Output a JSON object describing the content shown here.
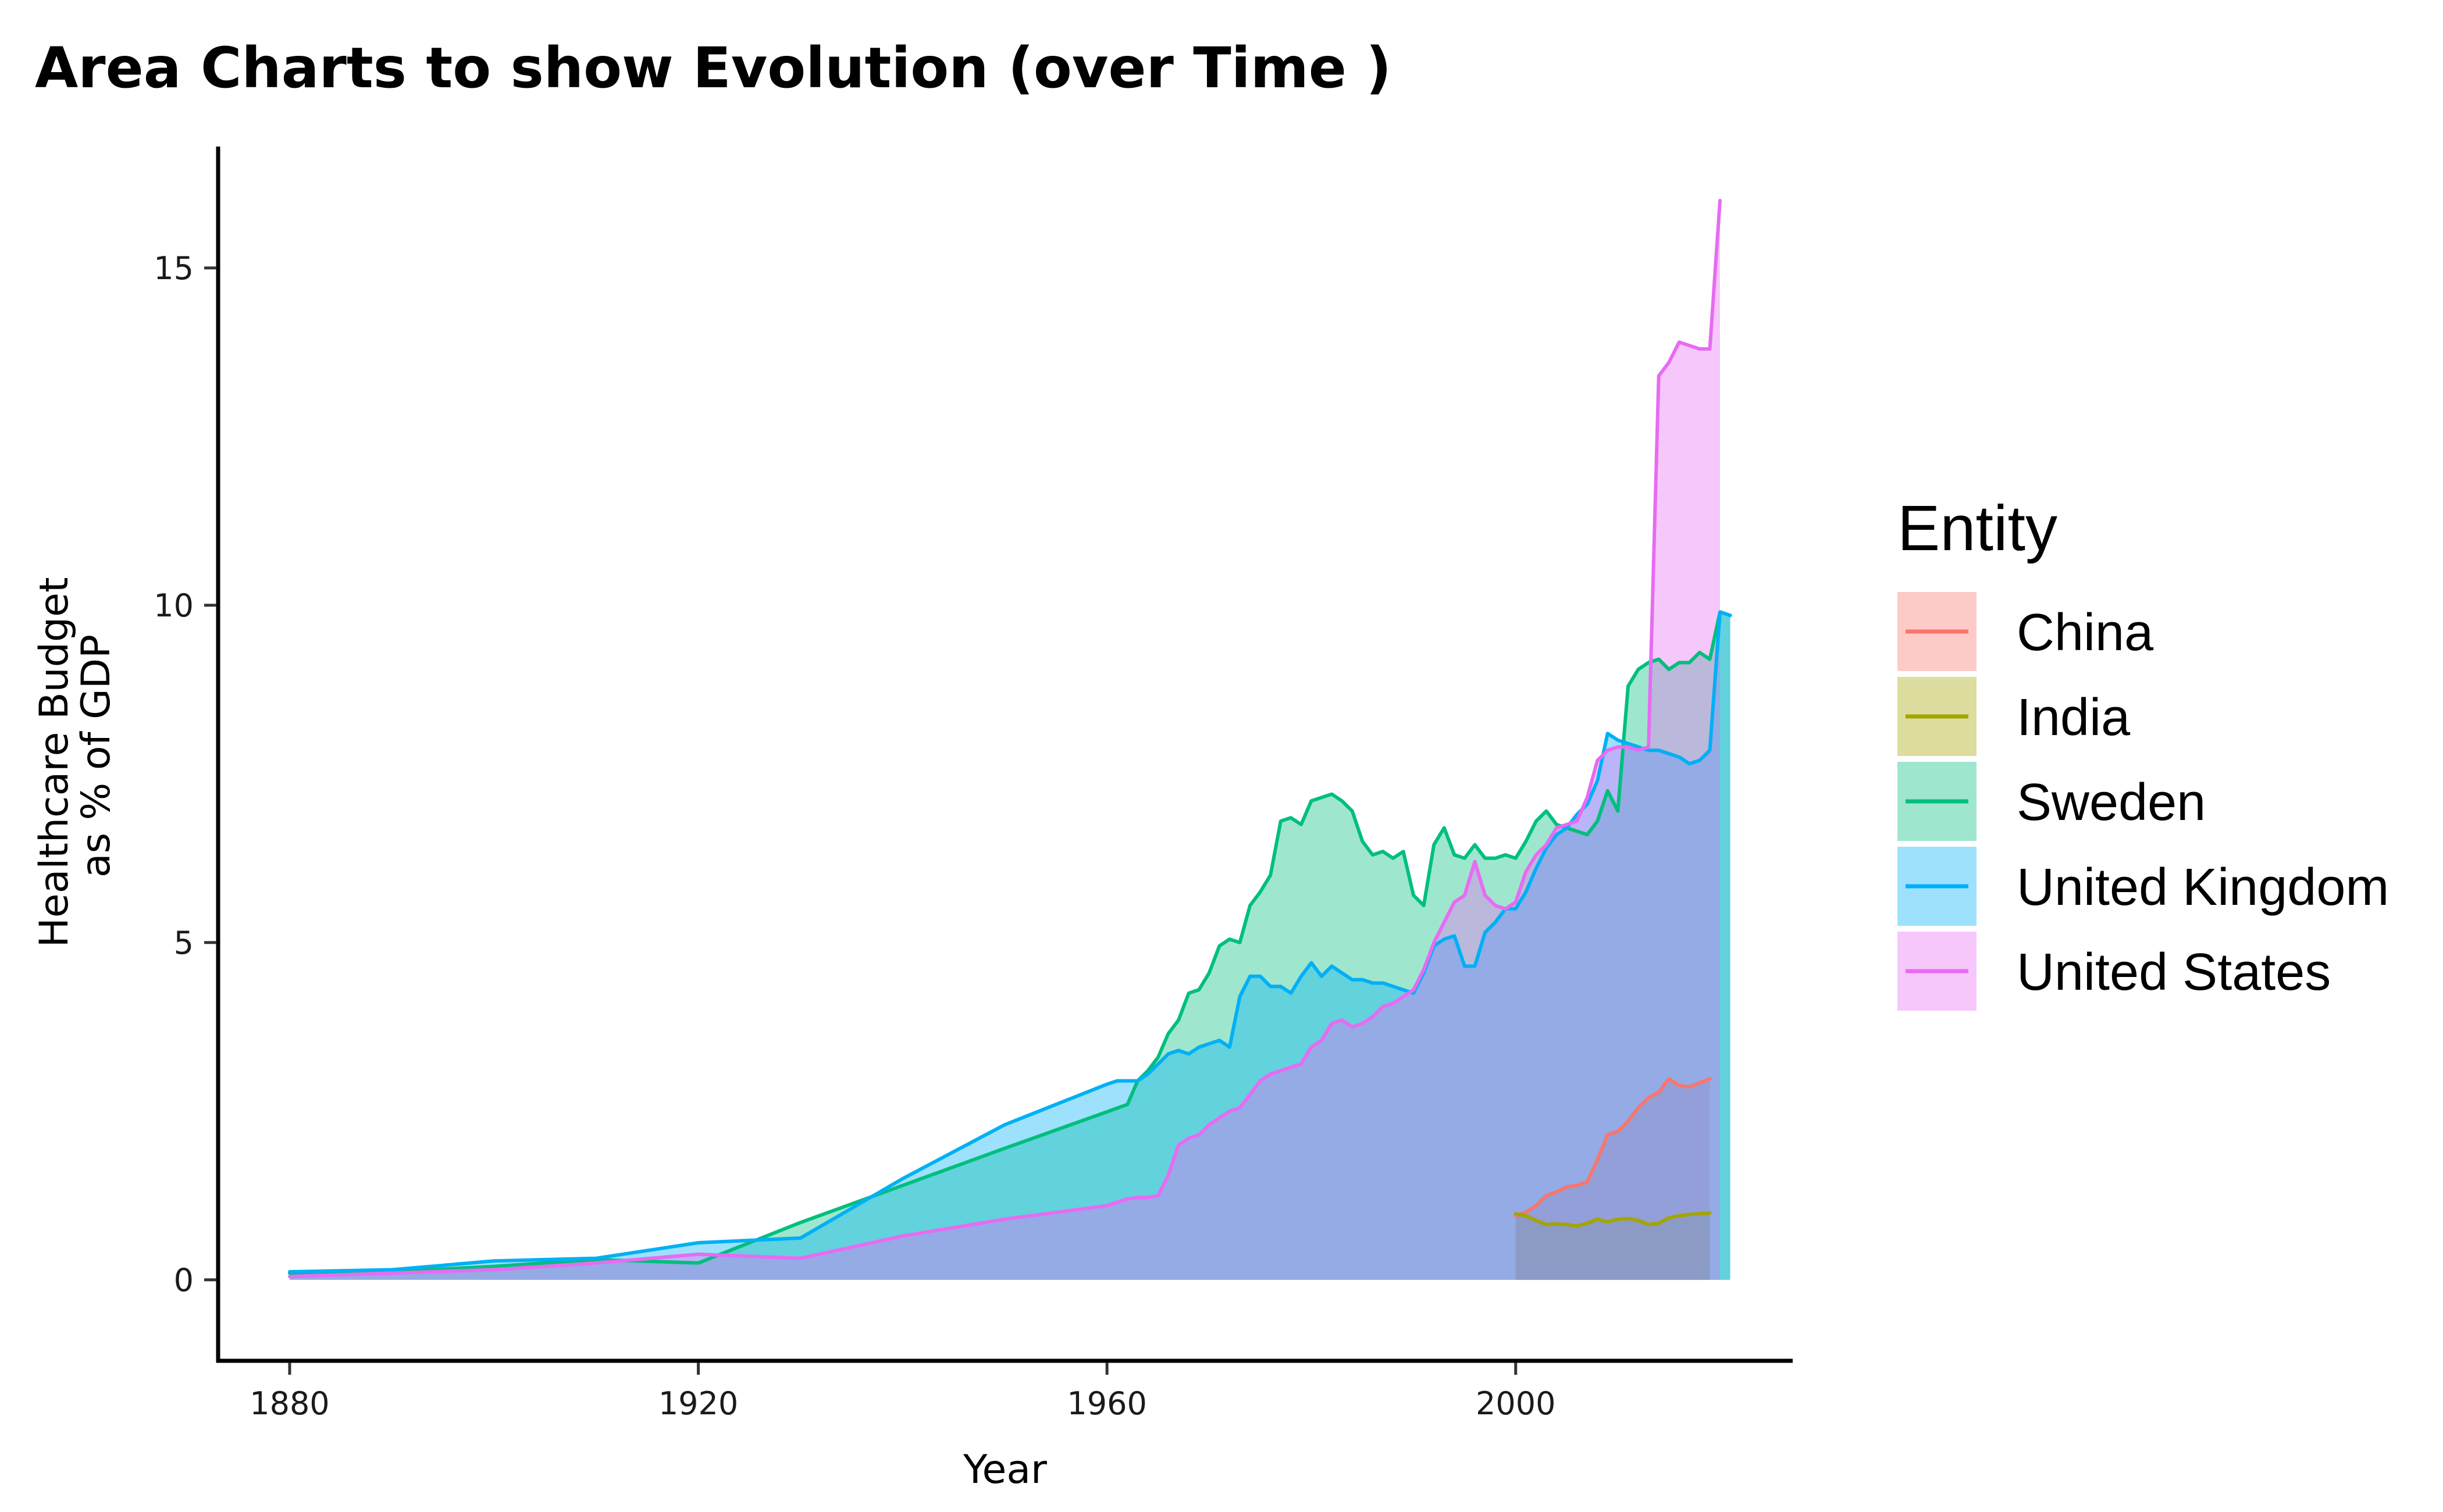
{
  "chart_data": {
    "type": "area",
    "title": "Area Charts to show Evolution (over Time )",
    "xlabel": "Year",
    "ylabel": [
      "Healthcare Budget",
      "as % of GDP"
    ],
    "xlim": [
      1873,
      2027
    ],
    "ylim": [
      -1.2,
      16.8
    ],
    "xticks": [
      1880,
      1920,
      1960,
      2000
    ],
    "xtick_labels": [
      "1880",
      "1920",
      "1960",
      "2000"
    ],
    "yticks": [
      0,
      5,
      10,
      15
    ],
    "ytick_labels": [
      "0",
      "5",
      "10",
      "15"
    ],
    "grid": false,
    "legend": {
      "title": "Entity",
      "position": "right"
    },
    "series": [
      {
        "name": "China",
        "color": "#F8766D",
        "fill": "#F8766D",
        "x": [
          2000,
          2001,
          2002,
          2003,
          2004,
          2005,
          2006,
          2007,
          2008,
          2009,
          2010,
          2011,
          2012,
          2013,
          2014,
          2015,
          2016,
          2017,
          2018,
          2019
        ],
        "y": [
          0.95,
          1.0,
          1.1,
          1.25,
          1.3,
          1.38,
          1.4,
          1.45,
          1.78,
          2.15,
          2.2,
          2.35,
          2.55,
          2.7,
          2.78,
          2.98,
          2.88,
          2.86,
          2.92,
          2.98
        ]
      },
      {
        "name": "India",
        "color": "#A3A500",
        "fill": "#A3A500",
        "x": [
          2000,
          2001,
          2002,
          2003,
          2004,
          2005,
          2006,
          2007,
          2008,
          2009,
          2010,
          2011,
          2012,
          2013,
          2014,
          2015,
          2016,
          2017,
          2018,
          2019
        ],
        "y": [
          0.98,
          0.95,
          0.88,
          0.82,
          0.83,
          0.82,
          0.8,
          0.84,
          0.9,
          0.86,
          0.9,
          0.91,
          0.88,
          0.82,
          0.84,
          0.92,
          0.95,
          0.97,
          0.98,
          0.99
        ]
      },
      {
        "name": "Sweden",
        "color": "#00BF7D",
        "fill": "#00BF7D",
        "x": [
          1880,
          1890,
          1900,
          1910,
          1920,
          1930,
          1940,
          1950,
          1962,
          1963,
          1964,
          1965,
          1966,
          1967,
          1968,
          1969,
          1970,
          1971,
          1972,
          1973,
          1974,
          1975,
          1976,
          1977,
          1978,
          1979,
          1980,
          1981,
          1982,
          1983,
          1984,
          1985,
          1986,
          1987,
          1988,
          1989,
          1990,
          1991,
          1992,
          1993,
          1994,
          1995,
          1996,
          1997,
          1998,
          1999,
          2000,
          2001,
          2002,
          2003,
          2004,
          2005,
          2006,
          2007,
          2008,
          2009,
          2010,
          2011,
          2012,
          2013,
          2014,
          2015,
          2016,
          2017,
          2018,
          2019,
          2020,
          2021
        ],
        "y": [
          0.1,
          0.12,
          0.2,
          0.3,
          0.25,
          0.85,
          1.4,
          1.95,
          2.6,
          2.95,
          3.1,
          3.3,
          3.65,
          3.85,
          4.25,
          4.3,
          4.55,
          4.95,
          5.05,
          5.0,
          5.55,
          5.75,
          6.0,
          6.8,
          6.85,
          6.75,
          7.1,
          7.15,
          7.2,
          7.1,
          6.95,
          6.5,
          6.3,
          6.35,
          6.25,
          6.35,
          5.7,
          5.55,
          6.45,
          6.7,
          6.3,
          6.25,
          6.45,
          6.25,
          6.25,
          6.3,
          6.25,
          6.5,
          6.8,
          6.95,
          6.75,
          6.7,
          6.65,
          6.6,
          6.8,
          7.25,
          6.95,
          8.8,
          9.05,
          9.15,
          9.2,
          9.05,
          9.15,
          9.15,
          9.3,
          9.2,
          9.9,
          9.85
        ]
      },
      {
        "name": "United Kingdom",
        "color": "#00B0F6",
        "fill": "#00B0F6",
        "x": [
          1880,
          1890,
          1900,
          1910,
          1920,
          1930,
          1940,
          1950,
          1960,
          1961,
          1962,
          1963,
          1964,
          1965,
          1966,
          1967,
          1968,
          1969,
          1970,
          1971,
          1972,
          1973,
          1974,
          1975,
          1976,
          1977,
          1978,
          1979,
          1980,
          1981,
          1982,
          1983,
          1984,
          1985,
          1986,
          1987,
          1988,
          1989,
          1990,
          1991,
          1992,
          1993,
          1994,
          1995,
          1996,
          1997,
          1998,
          1999,
          2000,
          2001,
          2002,
          2003,
          2004,
          2005,
          2006,
          2007,
          2008,
          2009,
          2010,
          2011,
          2012,
          2013,
          2014,
          2015,
          2016,
          2017,
          2018,
          2019,
          2020,
          2021
        ],
        "y": [
          0.12,
          0.15,
          0.28,
          0.32,
          0.55,
          0.62,
          1.5,
          2.3,
          2.9,
          2.95,
          2.95,
          2.95,
          3.05,
          3.2,
          3.35,
          3.4,
          3.35,
          3.45,
          3.5,
          3.55,
          3.45,
          4.2,
          4.5,
          4.5,
          4.35,
          4.35,
          4.25,
          4.5,
          4.7,
          4.5,
          4.65,
          4.55,
          4.45,
          4.45,
          4.4,
          4.4,
          4.35,
          4.3,
          4.25,
          4.55,
          4.95,
          5.05,
          5.1,
          4.65,
          4.65,
          5.15,
          5.3,
          5.5,
          5.5,
          5.75,
          6.1,
          6.4,
          6.6,
          6.7,
          6.9,
          7.05,
          7.4,
          8.1,
          8.0,
          7.95,
          7.9,
          7.85,
          7.85,
          7.8,
          7.75,
          7.65,
          7.7,
          7.85,
          9.9,
          9.85
        ]
      },
      {
        "name": "United States",
        "color": "#E76BF3",
        "fill": "#E76BF3",
        "x": [
          1880,
          1890,
          1900,
          1910,
          1920,
          1930,
          1940,
          1950,
          1960,
          1961,
          1962,
          1963,
          1964,
          1965,
          1966,
          1967,
          1968,
          1969,
          1970,
          1971,
          1972,
          1973,
          1974,
          1975,
          1976,
          1977,
          1978,
          1979,
          1980,
          1981,
          1982,
          1983,
          1984,
          1985,
          1986,
          1987,
          1988,
          1989,
          1990,
          1991,
          1992,
          1993,
          1994,
          1995,
          1996,
          1997,
          1998,
          1999,
          2000,
          2001,
          2002,
          2003,
          2004,
          2005,
          2006,
          2007,
          2008,
          2009,
          2010,
          2011,
          2012,
          2013,
          2014,
          2015,
          2016,
          2017,
          2018,
          2019,
          2020
        ],
        "y": [
          0.05,
          0.1,
          0.15,
          0.25,
          0.38,
          0.32,
          0.65,
          0.9,
          1.1,
          1.15,
          1.2,
          1.22,
          1.22,
          1.25,
          1.55,
          2.0,
          2.1,
          2.15,
          2.3,
          2.4,
          2.5,
          2.55,
          2.75,
          2.95,
          3.05,
          3.1,
          3.15,
          3.2,
          3.45,
          3.55,
          3.8,
          3.85,
          3.75,
          3.8,
          3.9,
          4.05,
          4.1,
          4.2,
          4.3,
          4.6,
          5.0,
          5.3,
          5.6,
          5.7,
          6.2,
          5.7,
          5.55,
          5.5,
          5.6,
          6.05,
          6.3,
          6.45,
          6.7,
          6.75,
          6.8,
          7.15,
          7.7,
          7.85,
          7.9,
          7.9,
          7.85,
          7.9,
          13.4,
          13.6,
          13.9,
          13.85,
          13.8,
          13.8,
          16.0
        ]
      }
    ]
  }
}
